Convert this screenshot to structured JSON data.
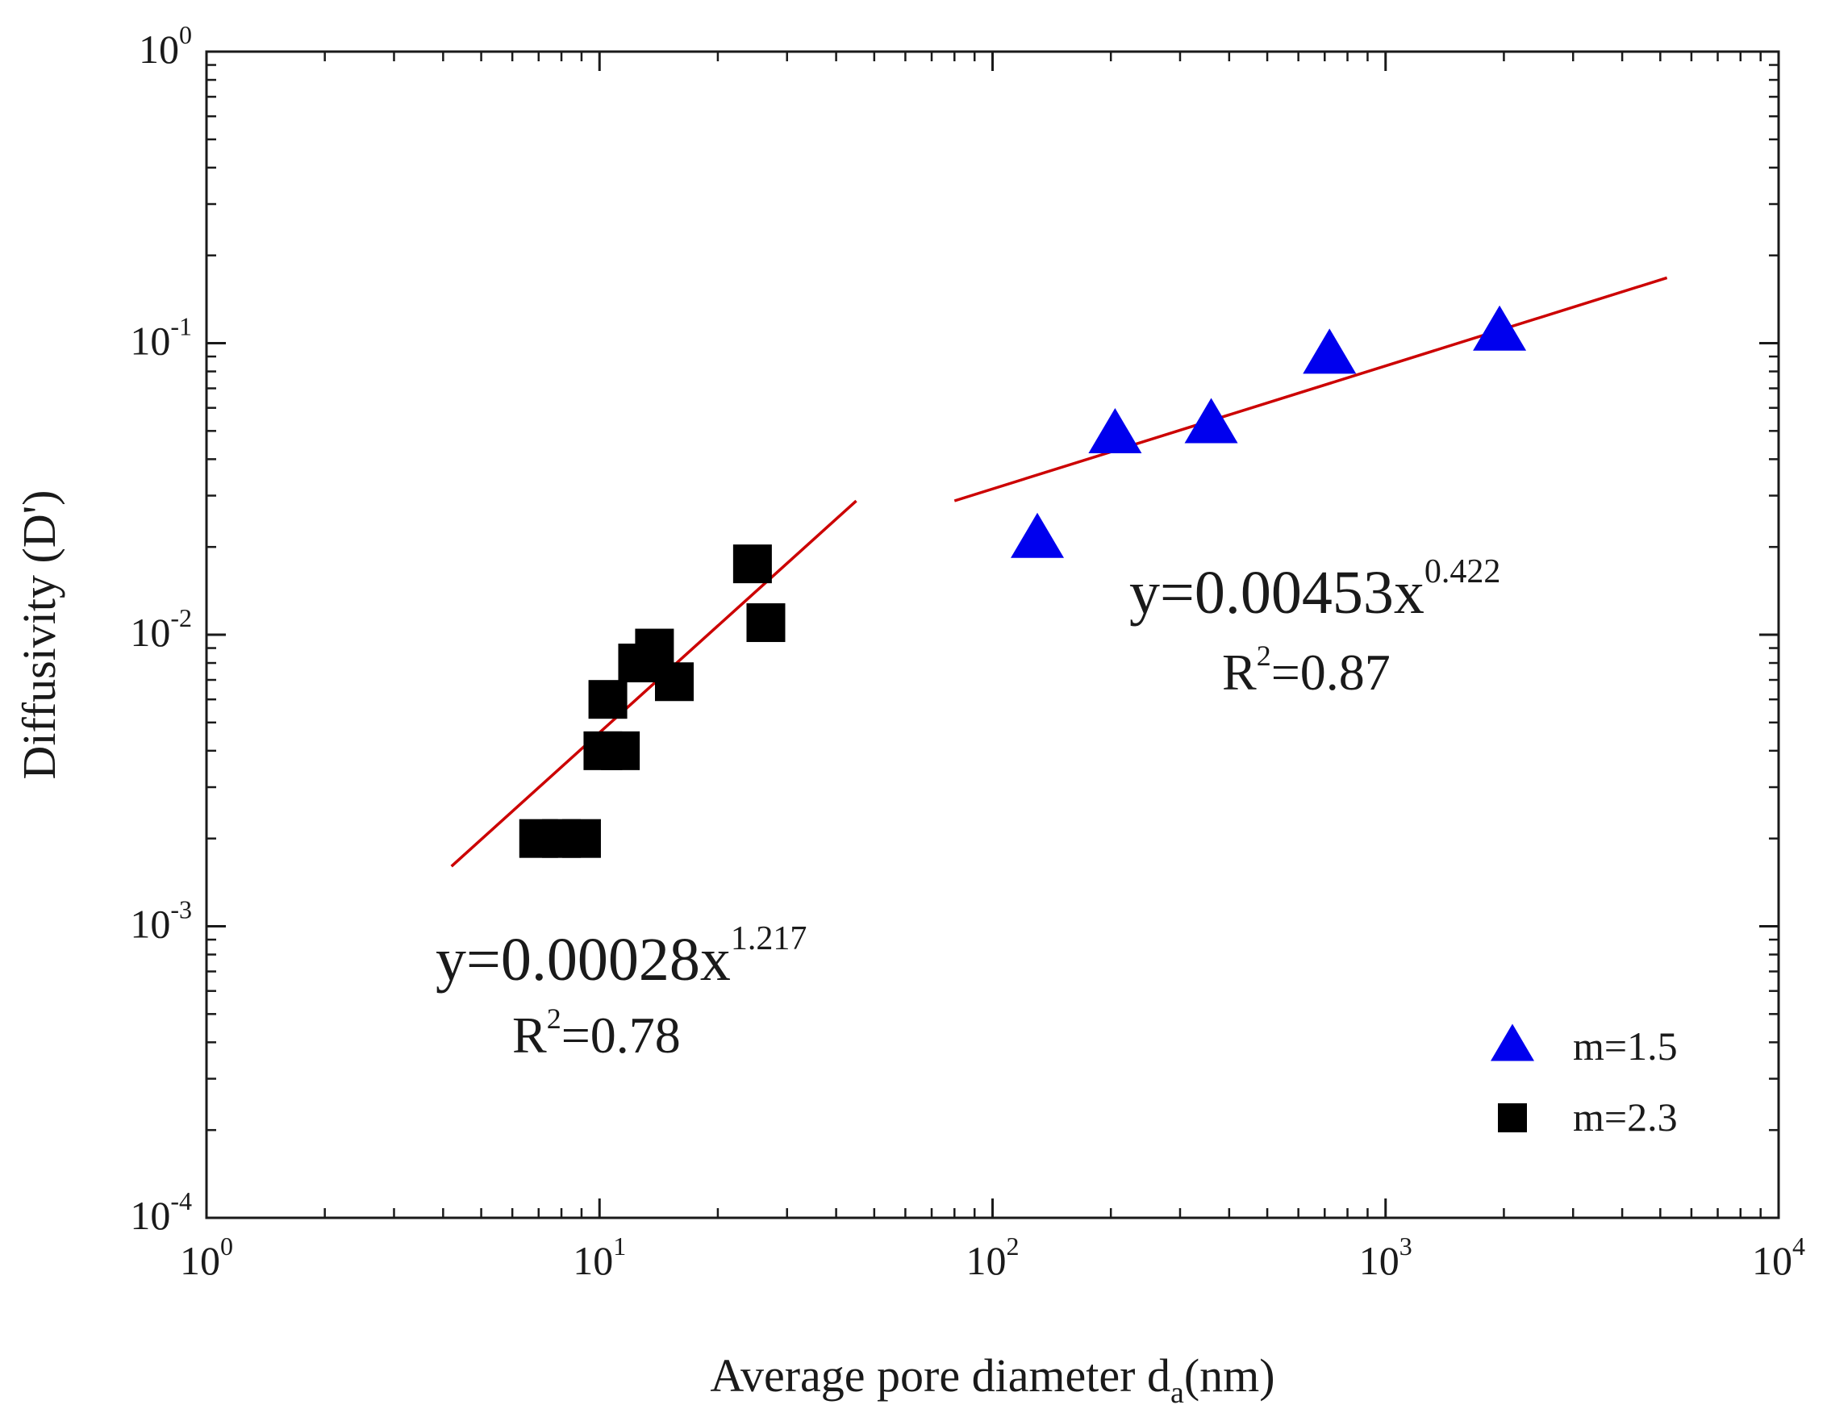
{
  "chart_data": {
    "type": "scatter",
    "xscale": "log",
    "yscale": "log",
    "xlim": [
      1,
      10000
    ],
    "ylim": [
      0.0001,
      1
    ],
    "grid": false,
    "xlabel": {
      "main": "Average pore diameter d",
      "sub": "a",
      "unit": "(nm)"
    },
    "ylabel": "Diffusivity (D')",
    "xticks": [
      {
        "value": 1,
        "base": "10",
        "exp": "0"
      },
      {
        "value": 10,
        "base": "10",
        "exp": "1"
      },
      {
        "value": 100,
        "base": "10",
        "exp": "2"
      },
      {
        "value": 1000,
        "base": "10",
        "exp": "3"
      },
      {
        "value": 10000,
        "base": "10",
        "exp": "4"
      }
    ],
    "yticks": [
      {
        "value": 0.0001,
        "base": "10",
        "exp": "-4"
      },
      {
        "value": 0.001,
        "base": "10",
        "exp": "-3"
      },
      {
        "value": 0.01,
        "base": "10",
        "exp": "-2"
      },
      {
        "value": 0.1,
        "base": "10",
        "exp": "-1"
      },
      {
        "value": 1,
        "base": "10",
        "exp": "0"
      }
    ],
    "series": [
      {
        "name": "m=1.5",
        "marker": "triangle",
        "color": "#0000ee",
        "points": [
          [
            130,
            0.021
          ],
          [
            205,
            0.048
          ],
          [
            360,
            0.052
          ],
          [
            720,
            0.09
          ],
          [
            1950,
            0.108
          ]
        ]
      },
      {
        "name": "m=2.3",
        "marker": "square",
        "color": "#000000",
        "points": [
          [
            7.0,
            0.002
          ],
          [
            8.0,
            0.002
          ],
          [
            9.0,
            0.002
          ],
          [
            10.2,
            0.004
          ],
          [
            11.3,
            0.004
          ],
          [
            10.5,
            0.006
          ],
          [
            12.5,
            0.008
          ],
          [
            13.8,
            0.009
          ],
          [
            15.5,
            0.0069
          ],
          [
            24.5,
            0.0175
          ],
          [
            26.5,
            0.011
          ]
        ]
      }
    ],
    "fits": [
      {
        "series": "m=2.3",
        "color": "#cc0000",
        "coef": 0.00028,
        "power": 1.217,
        "x_range": [
          4.2,
          45
        ],
        "equation": {
          "lead": "y=0.00028x",
          "exp": "1.217"
        },
        "r2": {
          "r": "R",
          "sup": "2",
          "rest": "=0.78"
        }
      },
      {
        "series": "m=1.5",
        "color": "#cc0000",
        "coef": 0.00453,
        "power": 0.422,
        "x_range": [
          80,
          5200
        ],
        "equation": {
          "lead": "y=0.00453x",
          "exp": "0.422"
        },
        "r2": {
          "r": "R",
          "sup": "2",
          "rest": "=0.87"
        }
      }
    ],
    "legend": {
      "placement": "bottom-right",
      "entries": [
        {
          "label": "m=1.5",
          "marker": "triangle",
          "color": "#0000ee"
        },
        {
          "label": "m=2.3",
          "marker": "square",
          "color": "#000000"
        }
      ]
    }
  }
}
